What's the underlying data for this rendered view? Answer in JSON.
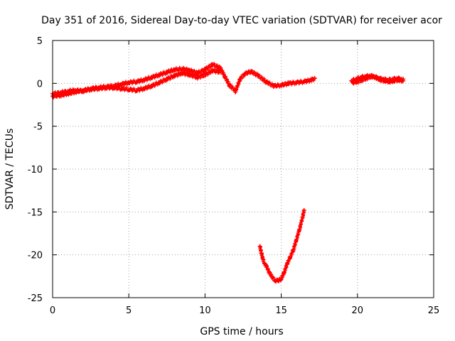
{
  "chart_data": {
    "type": "scatter",
    "title": "Day 351 of 2016, Sidereal Day-to-day VTEC variation (SDTVAR) for receiver acor",
    "xlabel": "GPS time / hours",
    "ylabel": "SDTVAR / TECUs",
    "xlim": [
      0,
      25
    ],
    "ylim": [
      -25,
      5
    ],
    "xticks": [
      0,
      5,
      10,
      15,
      20,
      25
    ],
    "yticks": [
      5,
      0,
      -5,
      -10,
      -15,
      -20,
      -25
    ],
    "xtick_labels": [
      "0",
      "5",
      "10",
      "15",
      "20",
      "25"
    ],
    "ytick_labels": [
      "5",
      "0",
      "-5",
      "-10",
      "-15",
      "-20",
      "-25"
    ],
    "grid": true,
    "series": [
      {
        "name": "SDTVAR",
        "color": "#ff0000",
        "marker": "plus",
        "segments": [
          {
            "x": [
              0.0,
              0.5,
              1.0,
              1.5,
              2.0,
              2.5,
              3.0,
              3.5,
              4.0,
              4.5,
              5.0,
              5.5,
              6.0,
              6.5,
              7.0,
              7.5,
              8.0,
              8.5,
              9.0,
              9.5,
              10.0,
              10.5,
              11.0,
              11.3,
              11.6,
              12.0,
              12.3,
              12.6,
              13.0,
              13.5,
              14.0,
              14.5,
              15.0,
              15.5,
              16.0,
              16.5,
              17.0,
              17.2
            ],
            "y": [
              -1.2,
              -1.1,
              -0.9,
              -0.8,
              -0.9,
              -0.6,
              -0.5,
              -0.4,
              -0.3,
              -0.1,
              0.1,
              0.2,
              0.4,
              0.7,
              1.0,
              1.3,
              1.6,
              1.7,
              1.5,
              1.2,
              1.6,
              2.2,
              1.8,
              0.8,
              -0.2,
              -0.9,
              0.5,
              1.1,
              1.4,
              0.9,
              0.2,
              -0.3,
              -0.2,
              0.0,
              0.1,
              0.2,
              0.4,
              0.6
            ]
          },
          {
            "x": [
              0.0,
              0.5,
              1.0,
              1.5,
              2.0,
              2.5,
              3.0,
              3.5,
              4.0,
              4.5,
              5.0,
              5.5,
              6.0,
              6.5,
              7.0,
              7.5,
              8.0,
              8.5,
              9.0,
              9.5,
              10.0,
              10.5,
              11.0
            ],
            "y": [
              -1.5,
              -1.4,
              -1.2,
              -1.0,
              -0.8,
              -0.7,
              -0.6,
              -0.5,
              -0.5,
              -0.6,
              -0.7,
              -0.8,
              -0.6,
              -0.3,
              0.1,
              0.5,
              0.9,
              1.2,
              1.0,
              0.7,
              1.0,
              1.5,
              1.3
            ]
          },
          {
            "x": [
              13.6,
              13.7,
              13.8,
              13.9,
              14.0,
              14.2,
              14.4,
              14.6,
              14.8,
              15.0,
              15.2,
              15.4,
              15.6,
              15.8,
              16.0,
              16.2,
              16.4,
              16.5
            ],
            "y": [
              -19.0,
              -19.8,
              -20.5,
              -21.0,
              -21.2,
              -22.0,
              -22.6,
              -23.0,
              -23.0,
              -22.8,
              -22.0,
              -21.0,
              -20.2,
              -19.4,
              -18.2,
              -17.0,
              -15.6,
              -14.8
            ]
          },
          {
            "x": [
              19.6,
              19.9,
              20.2,
              20.5,
              20.8,
              21.1,
              21.4,
              21.7,
              22.0,
              22.3,
              22.6,
              22.9,
              23.0
            ],
            "y": [
              0.3,
              0.5,
              0.7,
              0.8,
              0.9,
              0.8,
              0.6,
              0.5,
              0.4,
              0.5,
              0.6,
              0.5,
              0.5
            ]
          },
          {
            "x": [
              19.7,
              20.0,
              20.3,
              20.6,
              20.9,
              21.2,
              21.5,
              21.8,
              22.1,
              22.4,
              22.7,
              23.0
            ],
            "y": [
              0.1,
              0.2,
              0.4,
              0.6,
              0.8,
              0.7,
              0.4,
              0.3,
              0.2,
              0.3,
              0.4,
              0.3
            ]
          }
        ]
      }
    ]
  }
}
